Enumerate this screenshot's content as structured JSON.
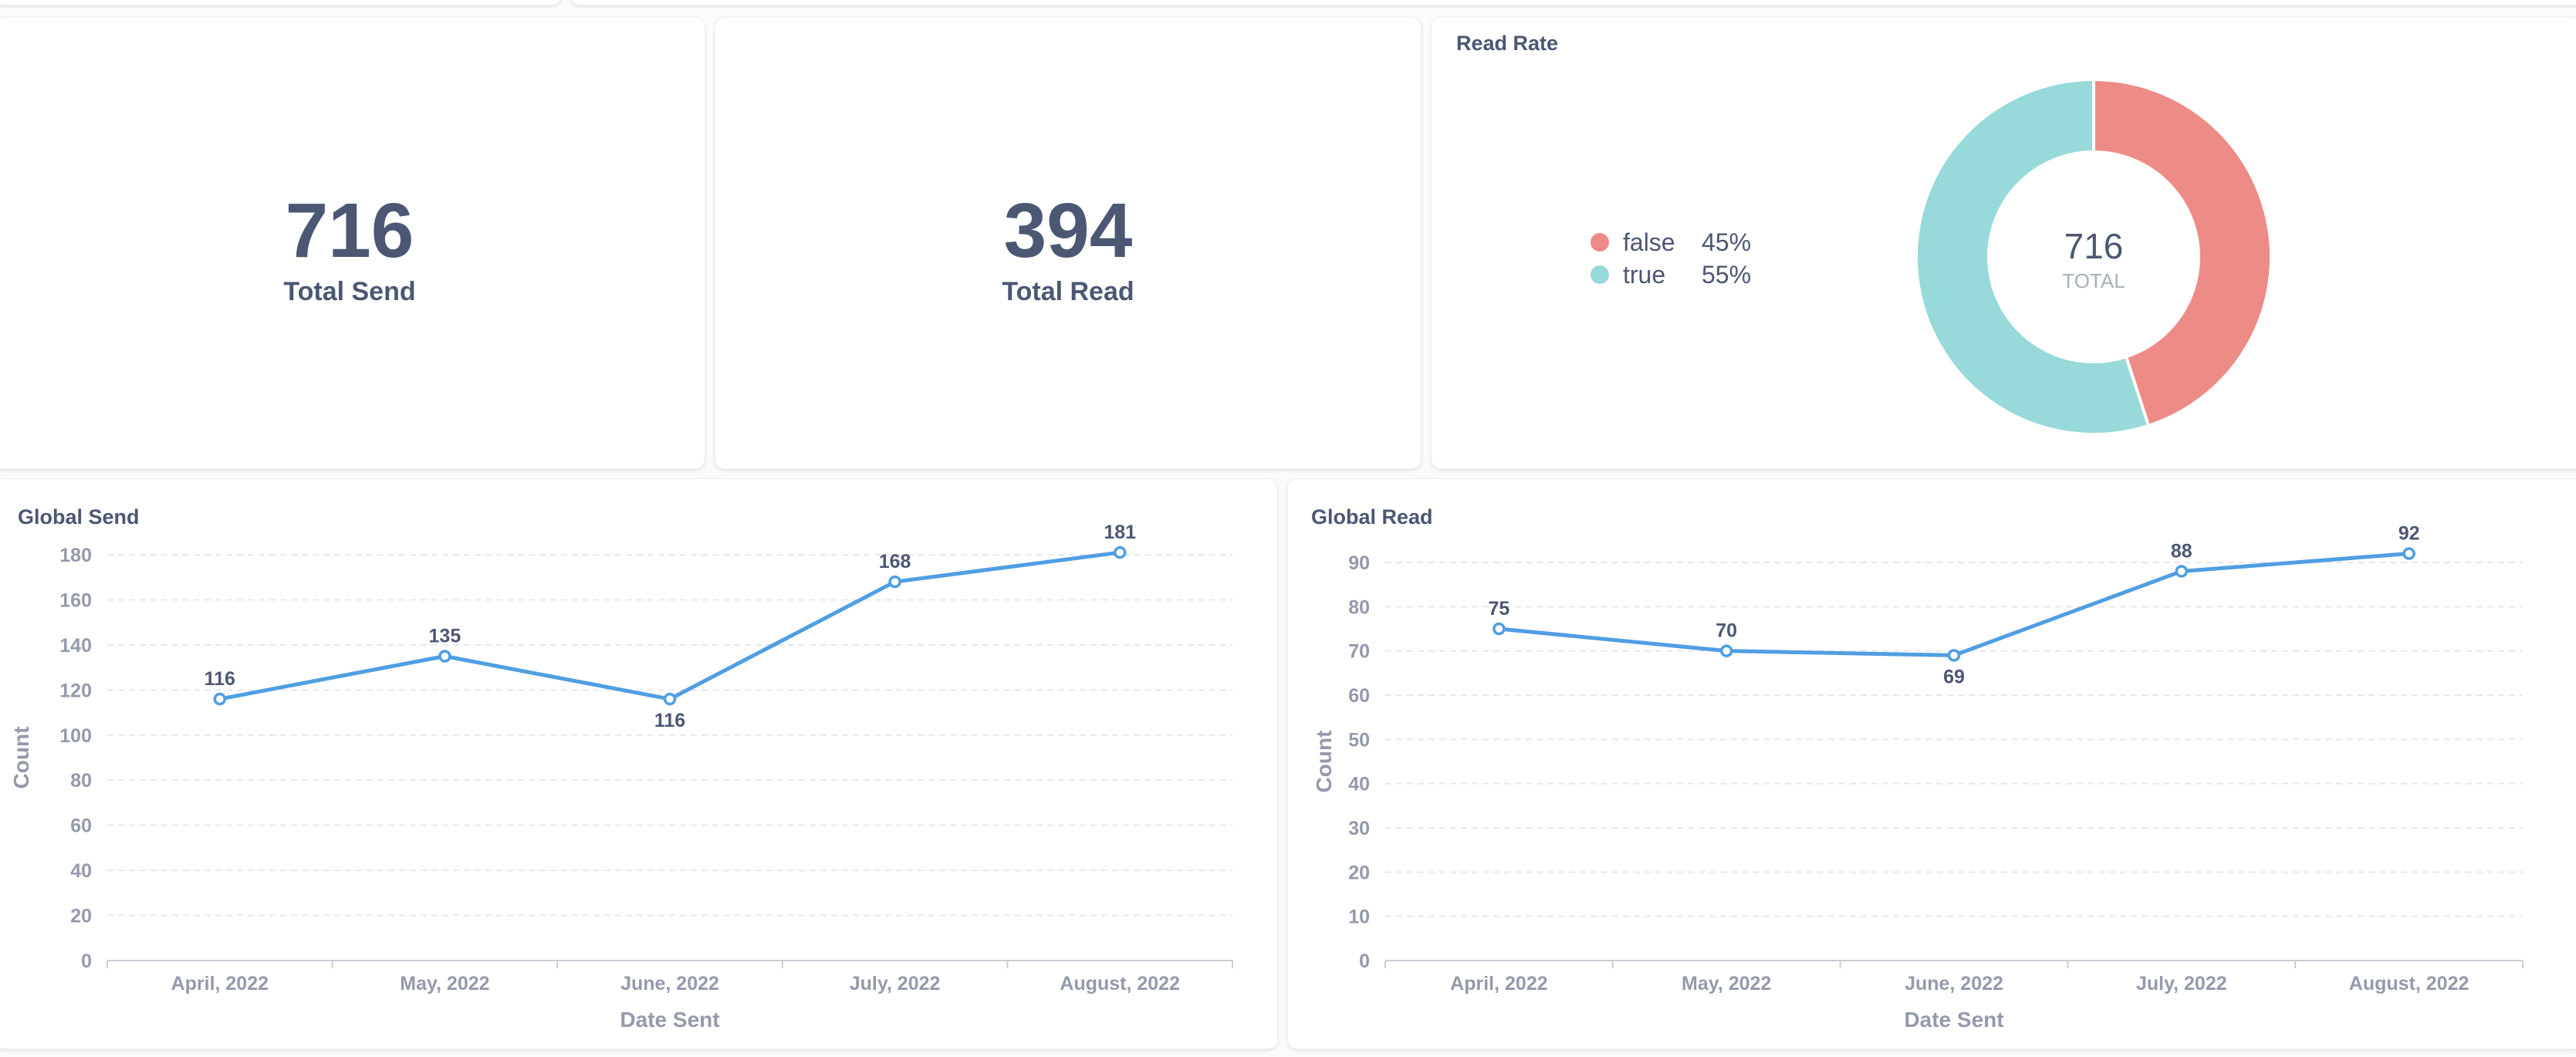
{
  "scalars": {
    "total_send": {
      "value": "716",
      "label": "Total Send"
    },
    "total_read": {
      "value": "394",
      "label": "Total Read"
    }
  },
  "read_rate": {
    "title": "Read Rate",
    "legend": [
      {
        "label": "false",
        "percent": "45%",
        "color": "#ed8b87"
      },
      {
        "label": "true",
        "percent": "55%",
        "color": "#98d9d9"
      }
    ],
    "total_value": "716",
    "total_label": "TOTAL"
  },
  "global_send": {
    "title": "Global Send"
  },
  "global_read": {
    "title": "Global Read"
  },
  "chart_data": [
    {
      "type": "pie",
      "title": "Read Rate",
      "categories": [
        "false",
        "true"
      ],
      "values": [
        45,
        55
      ],
      "colors": [
        "#ed8b87",
        "#98d9d9"
      ],
      "total": 716,
      "legend": "left"
    },
    {
      "type": "line",
      "title": "Global Send",
      "categories": [
        "April, 2022",
        "May, 2022",
        "June, 2022",
        "July, 2022",
        "August, 2022"
      ],
      "series": [
        {
          "values": [
            116,
            135,
            116,
            168,
            181
          ]
        }
      ],
      "xlabel": "Date Sent",
      "ylabel": "Count",
      "ylim": [
        0,
        180
      ],
      "yticks": [
        0,
        20,
        40,
        60,
        80,
        100,
        120,
        140,
        160,
        180
      ],
      "grid": true,
      "color": "#509ee3"
    },
    {
      "type": "line",
      "title": "Global Read",
      "categories": [
        "April, 2022",
        "May, 2022",
        "June, 2022",
        "July, 2022",
        "August, 2022"
      ],
      "series": [
        {
          "values": [
            75,
            70,
            69,
            88,
            92
          ]
        }
      ],
      "xlabel": "Date Sent",
      "ylabel": "Count",
      "ylim": [
        0,
        90
      ],
      "yticks": [
        0,
        10,
        20,
        30,
        40,
        50,
        60,
        70,
        80,
        90
      ],
      "grid": true,
      "color": "#509ee3"
    }
  ]
}
